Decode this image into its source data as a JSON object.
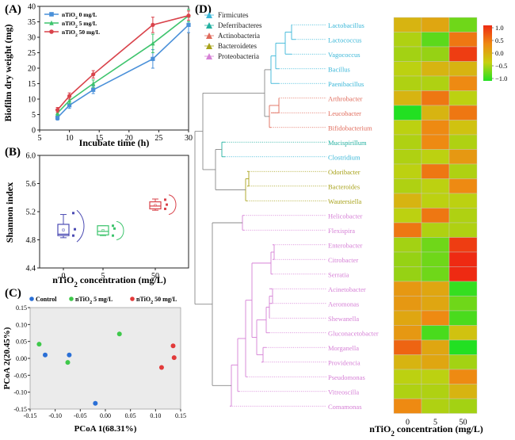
{
  "panels": {
    "A": {
      "letter": "(A)",
      "chart_data": {
        "type": "line",
        "xlabel": "Incubate time (h)",
        "ylabel": "Biofilm dry weight (mg)",
        "xlim": [
          5,
          30
        ],
        "ylim": [
          0,
          40
        ],
        "xticks": [
          5,
          10,
          15,
          20,
          25,
          30
        ],
        "yticks": [
          0,
          5,
          10,
          15,
          20,
          25,
          30,
          35,
          40
        ],
        "legend_position": "top-left",
        "grid": false,
        "x": [
          8,
          10,
          14,
          24,
          30
        ],
        "series": [
          {
            "name": "nTiO2 0 mg/L",
            "color": "#4a90d9",
            "marker": "square",
            "values": [
              4.0,
              8.0,
              13.0,
              23.0,
              34.0
            ],
            "err": [
              0.8,
              1.0,
              1.2,
              3.0,
              2.5
            ]
          },
          {
            "name": "nTiO2 5 mg/L",
            "color": "#3ec46d",
            "marker": "triangle",
            "values": [
              5.5,
              9.5,
              15.0,
              28.0,
              37.0
            ],
            "err": [
              0.8,
              1.0,
              1.2,
              3.0,
              2.0
            ]
          },
          {
            "name": "nTiO2 50 mg/L",
            "color": "#d9434b",
            "marker": "circle",
            "values": [
              6.5,
              11.0,
              18.0,
              34.0,
              37.0
            ],
            "err": [
              0.8,
              1.0,
              1.2,
              2.5,
              1.5
            ]
          }
        ]
      }
    },
    "B": {
      "letter": "(B)",
      "chart_data": {
        "type": "box",
        "xlabel": "nTiO2 concentration (mg/L)",
        "ylabel": "Shannon index",
        "ylim": [
          4.4,
          6.0
        ],
        "yticks": [
          "4.4",
          "4.8",
          "5.2",
          "5.6",
          "6.0"
        ],
        "categories": [
          "0",
          "5",
          "50"
        ],
        "groups": [
          {
            "category": "0",
            "color": "#4b4bb3",
            "min": 4.83,
            "q1": 4.86,
            "median": 4.88,
            "q3": 5.02,
            "max": 5.16,
            "points": [
              5.18,
              4.95,
              4.86
            ]
          },
          {
            "category": "5",
            "color": "#3ec46d",
            "min": 4.86,
            "q1": 4.87,
            "median": 4.92,
            "q3": 5.0,
            "max": 5.0,
            "points": [
              5.0,
              4.96,
              4.86
            ]
          },
          {
            "category": "50",
            "color": "#d9434b",
            "min": 5.22,
            "q1": 5.24,
            "median": 5.28,
            "q3": 5.34,
            "max": 5.38,
            "points": [
              5.37,
              5.3,
              5.24
            ]
          }
        ]
      }
    },
    "C": {
      "letter": "(C)",
      "chart_data": {
        "type": "scatter",
        "xlabel": "PCoA 1(68.31%)",
        "ylabel": "PCoA 2(20.45%)",
        "xlim": [
          -0.15,
          0.15
        ],
        "ylim": [
          -0.15,
          0.15
        ],
        "xticks": [
          "-0.15",
          "-0.10",
          "-0.05",
          "0.00",
          "0.05",
          "0.10",
          "0.15"
        ],
        "yticks": [
          "-0.15",
          "-0.10",
          "-0.05",
          "0.00",
          "0.05",
          "0.10",
          "0.15"
        ],
        "background": "#ebebeb",
        "legend_position": "top",
        "series": [
          {
            "name": "Control",
            "color": "#2a6fd6",
            "points": [
              [
                -0.12,
                0.01
              ],
              [
                -0.072,
                0.01
              ],
              [
                -0.02,
                -0.133
              ]
            ]
          },
          {
            "name": "nTiO2 5 mg/L",
            "color": "#3ec84a",
            "points": [
              [
                -0.132,
                0.042
              ],
              [
                -0.075,
                -0.012
              ],
              [
                0.028,
                0.072
              ]
            ]
          },
          {
            "name": "nTiO2 50 mg/L",
            "color": "#e23a3a",
            "points": [
              [
                0.135,
                0.037
              ],
              [
                0.137,
                0.002
              ],
              [
                0.112,
                -0.027
              ]
            ]
          }
        ]
      }
    },
    "D": {
      "letter": "(D)",
      "chart_data": {
        "type": "heatmap",
        "xlabel": "nTiO2 concentration (mg/L)",
        "columns": [
          "0",
          "5",
          "50"
        ],
        "colorbar": {
          "ticks": [
            "1.0",
            "0.5",
            "0.0",
            "−0.5",
            "−1.0"
          ],
          "range": [
            -1.0,
            1.0
          ],
          "colors": [
            "#22e022",
            "#c8d010",
            "#ee8a12",
            "#ee2a12"
          ]
        },
        "phyla": [
          {
            "name": "Firmicutes",
            "color": "#3ab7d8"
          },
          {
            "name": "Deferribacteres",
            "color": "#22b0a0"
          },
          {
            "name": "Actinobacteria",
            "color": "#e06a5a"
          },
          {
            "name": "Bacteroidetes",
            "color": "#a8a21a"
          },
          {
            "name": "Proteobacteria",
            "color": "#d680d6"
          }
        ],
        "rows": [
          {
            "taxon": "Lactobacillus",
            "phylum": "Firmicutes",
            "values": [
              0.2,
              0.3,
              -0.6
            ]
          },
          {
            "taxon": "Lactococcus",
            "phylum": "Firmicutes",
            "values": [
              -0.2,
              -0.7,
              0.6
            ]
          },
          {
            "taxon": "Vagococcus",
            "phylum": "Firmicutes",
            "values": [
              -0.3,
              -0.4,
              0.9
            ]
          },
          {
            "taxon": "Bacillus",
            "phylum": "Firmicutes",
            "values": [
              -0.1,
              0.2,
              0.2
            ]
          },
          {
            "taxon": "Paenibacillus",
            "phylum": "Firmicutes",
            "values": [
              -0.2,
              -0.2,
              0.5
            ]
          },
          {
            "taxon": "Arthrobacter",
            "phylum": "Actinobacteria",
            "values": [
              0.2,
              0.6,
              -0.1
            ]
          },
          {
            "taxon": "Leucobacter",
            "phylum": "Actinobacteria",
            "values": [
              -1.0,
              0.2,
              0.6
            ]
          },
          {
            "taxon": "Bifidobacterium",
            "phylum": "Actinobacteria",
            "values": [
              -0.1,
              0.5,
              0.1
            ]
          },
          {
            "taxon": "Mucispirillum",
            "phylum": "Deferribacteres",
            "values": [
              -0.2,
              0.5,
              -0.2
            ]
          },
          {
            "taxon": "Clostridium",
            "phylum": "Firmicutes",
            "values": [
              -0.2,
              -0.1,
              0.4
            ]
          },
          {
            "taxon": "Odoribacter",
            "phylum": "Bacteroidetes",
            "values": [
              -0.1,
              0.6,
              -0.2
            ]
          },
          {
            "taxon": "Bacteroides",
            "phylum": "Bacteroidetes",
            "values": [
              -0.2,
              -0.1,
              0.5
            ]
          },
          {
            "taxon": "Wautersiella",
            "phylum": "Bacteroidetes",
            "values": [
              0.2,
              -0.1,
              -0.1
            ]
          },
          {
            "taxon": "Helicobacter",
            "phylum": "Proteobacteria",
            "values": [
              -0.1,
              0.6,
              -0.2
            ]
          },
          {
            "taxon": "Flexispira",
            "phylum": "Proteobacteria",
            "values": [
              0.6,
              -0.2,
              -0.2
            ]
          },
          {
            "taxon": "Enterobacter",
            "phylum": "Proteobacteria",
            "values": [
              -0.3,
              -0.6,
              0.9
            ]
          },
          {
            "taxon": "Citrobacter",
            "phylum": "Proteobacteria",
            "values": [
              -0.4,
              -0.6,
              1.0
            ]
          },
          {
            "taxon": "Serratia",
            "phylum": "Proteobacteria",
            "values": [
              -0.4,
              -0.6,
              1.0
            ]
          },
          {
            "taxon": "Acinetobacter",
            "phylum": "Proteobacteria",
            "values": [
              0.4,
              0.3,
              -0.9
            ]
          },
          {
            "taxon": "Aeromonas",
            "phylum": "Proteobacteria",
            "values": [
              0.4,
              0.3,
              -0.6
            ]
          },
          {
            "taxon": "Shewanella",
            "phylum": "Proteobacteria",
            "values": [
              0.3,
              0.5,
              -0.8
            ]
          },
          {
            "taxon": "Gluconacetobacter",
            "phylum": "Proteobacteria",
            "values": [
              0.4,
              -0.8,
              0.1
            ]
          },
          {
            "taxon": "Morganella",
            "phylum": "Proteobacteria",
            "values": [
              0.7,
              0.3,
              -1.0
            ]
          },
          {
            "taxon": "Providencia",
            "phylum": "Proteobacteria",
            "values": [
              0.2,
              0.3,
              -0.3
            ]
          },
          {
            "taxon": "Pseudomonas",
            "phylum": "Proteobacteria",
            "values": [
              -0.1,
              -0.1,
              0.5
            ]
          },
          {
            "taxon": "Vitreoscilla",
            "phylum": "Proteobacteria",
            "values": [
              -0.2,
              -0.2,
              0.2
            ]
          },
          {
            "taxon": "Comamonas",
            "phylum": "Proteobacteria",
            "values": [
              0.5,
              -0.2,
              -0.3
            ]
          }
        ]
      }
    }
  }
}
